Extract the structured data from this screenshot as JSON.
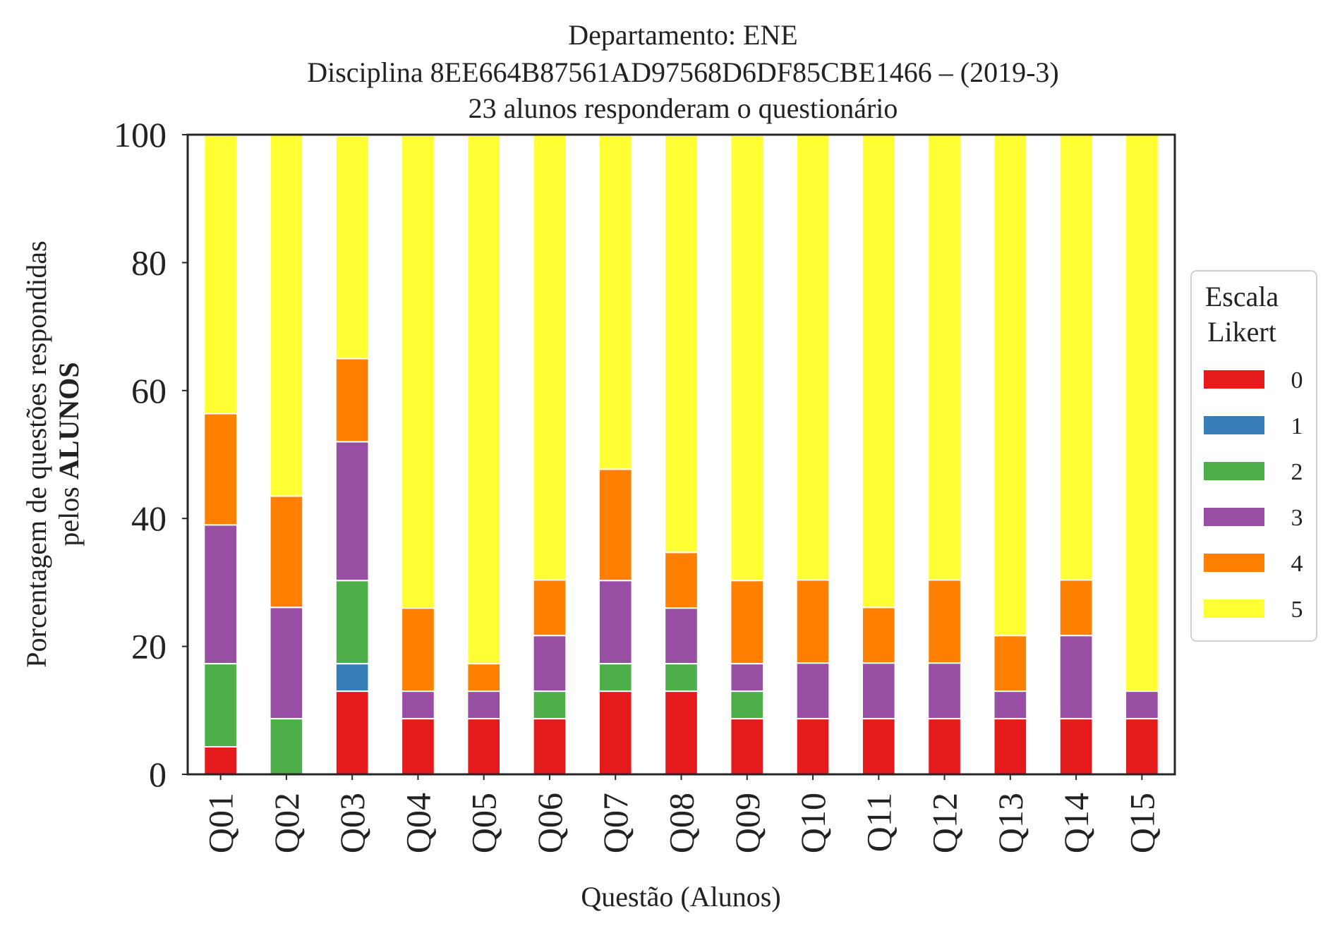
{
  "chart_data": {
    "type": "bar",
    "stacked": true,
    "title_lines": [
      "Departamento: ENE",
      "Disciplina 8EE664B87561AD97568D6DF85CBE1466 – (2019-3)",
      "23 alunos responderam o questionário"
    ],
    "xlabel": "Questão (Alunos)",
    "ylabel_line1": "Porcentagem de questões respondidas",
    "ylabel_line2_prefix": "pelos ",
    "ylabel_line2_bold": "ALUNOS",
    "ylim": [
      0,
      100
    ],
    "yticks": [
      "0",
      "20",
      "40",
      "60",
      "80",
      "100"
    ],
    "grid": false,
    "categories": [
      "Q01",
      "Q02",
      "Q03",
      "Q04",
      "Q05",
      "Q06",
      "Q07",
      "Q08",
      "Q09",
      "Q10",
      "Q11",
      "Q12",
      "Q13",
      "Q14",
      "Q15"
    ],
    "legend": {
      "title_line1": "Escala",
      "title_line2": "Likert",
      "placement": "right"
    },
    "series": [
      {
        "name": "0",
        "color": "#e41a1c",
        "values": [
          4.3,
          0,
          13.0,
          8.7,
          8.7,
          8.7,
          13.0,
          13.0,
          8.7,
          8.7,
          8.7,
          8.7,
          8.7,
          8.7,
          8.7
        ]
      },
      {
        "name": "1",
        "color": "#377eb8",
        "values": [
          0,
          0,
          4.3,
          0,
          0,
          0,
          0,
          0,
          0,
          0,
          0,
          0,
          0,
          0,
          0
        ]
      },
      {
        "name": "2",
        "color": "#4daf4a",
        "values": [
          13.0,
          8.7,
          13.0,
          0,
          0,
          4.3,
          4.3,
          4.3,
          4.3,
          0,
          0,
          0,
          0,
          0,
          0
        ]
      },
      {
        "name": "3",
        "color": "#984ea3",
        "values": [
          21.7,
          17.4,
          21.7,
          4.3,
          4.3,
          8.7,
          13.0,
          8.7,
          4.3,
          8.7,
          8.7,
          8.7,
          4.3,
          13.0,
          4.3
        ]
      },
      {
        "name": "4",
        "color": "#ff7f00",
        "values": [
          17.4,
          17.4,
          13.0,
          13.0,
          4.3,
          8.7,
          17.4,
          8.7,
          13.0,
          13.0,
          8.7,
          13.0,
          8.7,
          8.7,
          0
        ]
      },
      {
        "name": "5",
        "color": "#ffff33",
        "values": [
          43.5,
          56.5,
          34.8,
          73.9,
          82.6,
          69.6,
          52.2,
          65.2,
          69.6,
          69.6,
          73.9,
          69.6,
          78.3,
          69.6,
          87.0
        ]
      }
    ]
  }
}
